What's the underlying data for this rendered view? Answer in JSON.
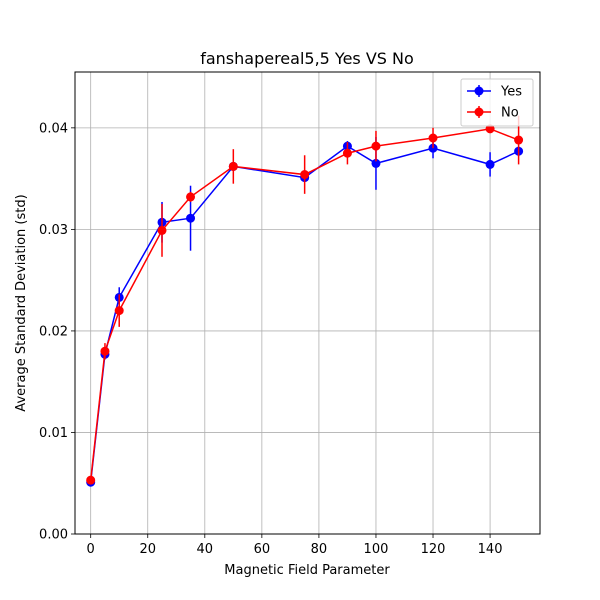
{
  "chart_data": {
    "type": "line",
    "title": "fanshapereal5,5 Yes VS No",
    "xlabel": "Magnetic Field Parameter",
    "ylabel": "Average Standard Deviation (std)",
    "xlim": [
      -5.5,
      157.5
    ],
    "ylim": [
      0,
      0.0455
    ],
    "xticks": [
      0,
      20,
      40,
      60,
      80,
      100,
      120,
      140
    ],
    "yticks": [
      0.0,
      0.01,
      0.02,
      0.03,
      0.04
    ],
    "xtick_labels": [
      "0",
      "20",
      "40",
      "60",
      "80",
      "100",
      "120",
      "140"
    ],
    "ytick_labels": [
      "0.00",
      "0.01",
      "0.02",
      "0.03",
      "0.04"
    ],
    "grid": true,
    "legend_position": "top-right",
    "series": [
      {
        "name": "Yes",
        "color": "#0000ff",
        "x": [
          0,
          5,
          10,
          25,
          35,
          50,
          75,
          90,
          100,
          120,
          140,
          150
        ],
        "y": [
          0.0051,
          0.0177,
          0.0233,
          0.0307,
          0.0311,
          0.0362,
          0.0351,
          0.0382,
          0.0365,
          0.038,
          0.0364,
          0.0377
        ],
        "yerr": [
          0.0003,
          0.0005,
          0.001,
          0.002,
          0.0032,
          0.0004,
          0.0004,
          0.0005,
          0.0026,
          0.001,
          0.0012,
          0.0005
        ]
      },
      {
        "name": "No",
        "color": "#ff0000",
        "x": [
          0,
          5,
          10,
          25,
          35,
          50,
          75,
          90,
          100,
          120,
          140,
          150
        ],
        "y": [
          0.0053,
          0.018,
          0.022,
          0.0299,
          0.0332,
          0.0362,
          0.0354,
          0.0375,
          0.0382,
          0.039,
          0.0399,
          0.0388
        ],
        "yerr": [
          0.0004,
          0.0008,
          0.0016,
          0.0026,
          0.0005,
          0.0017,
          0.0019,
          0.0011,
          0.0015,
          0.001,
          0.0003,
          0.0024
        ]
      }
    ]
  }
}
